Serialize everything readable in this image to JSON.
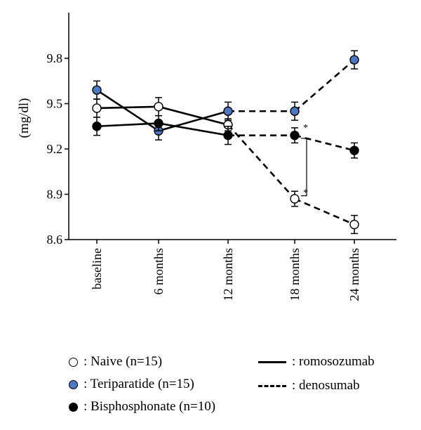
{
  "chart_data": {
    "type": "line",
    "ylabel": "(mg/dl)",
    "categories": [
      "baseline",
      "6 months",
      "12 months",
      "18 months",
      "24 months"
    ],
    "yticks": [
      "8.6",
      "8.9",
      "9.2",
      "9.5",
      "9.8"
    ],
    "ylim": [
      8.6,
      10.1
    ],
    "grid": false,
    "series": [
      {
        "name": "Naive (n=15)",
        "marker": "open-circle",
        "color": "#ffffff",
        "values": [
          9.47,
          9.48,
          9.36,
          8.87,
          8.7
        ],
        "errors": [
          0.06,
          0.06,
          0.04,
          0.05,
          0.06
        ],
        "styles": [
          "solid",
          "solid",
          "dashed",
          "dashed"
        ]
      },
      {
        "name": "Teriparatide (n=15)",
        "marker": "filled-circle",
        "color": "#4a78c2",
        "values": [
          9.59,
          9.32,
          9.45,
          9.45,
          9.79
        ],
        "errors": [
          0.06,
          0.06,
          0.06,
          0.06,
          0.06
        ],
        "styles": [
          "solid",
          "solid",
          "dashed",
          "dashed"
        ]
      },
      {
        "name": "Bisphosphonate (n=10)",
        "marker": "filled-circle",
        "color": "#000000",
        "values": [
          9.35,
          9.37,
          9.29,
          9.29,
          9.19
        ],
        "errors": [
          0.06,
          0.05,
          0.06,
          0.05,
          0.05
        ],
        "styles": [
          "solid",
          "solid",
          "dashed",
          "dashed"
        ]
      }
    ],
    "annotations": [
      {
        "text": "*",
        "x": "18 months",
        "y": 9.33
      },
      {
        "text": "*",
        "x": "18 months",
        "y": 8.9
      }
    ],
    "significance_bracket": {
      "x": "18 months",
      "from": 9.27,
      "to": 8.89
    },
    "legend": {
      "placement": "bottom",
      "markers": [
        {
          "label": ": Naive (n=15)",
          "color": "#ffffff"
        },
        {
          "label": ": Teriparatide (n=15)",
          "color": "#4a78c2"
        },
        {
          "label": ": Bisphosphonate (n=10)",
          "color": "#000000"
        }
      ],
      "lines": [
        {
          "label": ": romosozumab",
          "style": "solid"
        },
        {
          "label": ": denosumab",
          "style": "dashed"
        }
      ]
    }
  }
}
